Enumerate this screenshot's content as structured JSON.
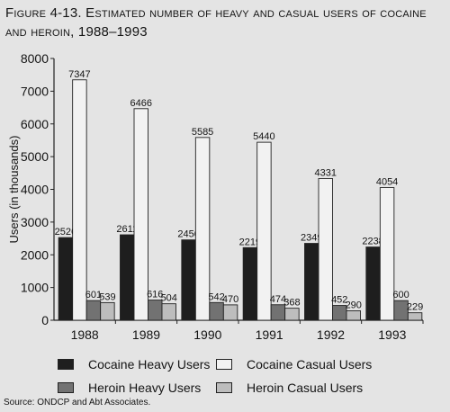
{
  "title": "Figure 4-13. Estimated number of heavy and casual users of cocaine and heroin, 1988–1993",
  "source": "Source: ONDCP and Abt Associates.",
  "colors": {
    "cocaine_heavy": "#1e1e1e",
    "cocaine_casual": "#f2f2f2",
    "heroin_heavy": "#727272",
    "heroin_casual": "#bdbdbd"
  },
  "chart_data": {
    "type": "bar",
    "title": "Figure 4-13. Estimated number of heavy and casual users of cocaine and heroin, 1988–1993",
    "xlabel": "",
    "ylabel": "Users (in thousands)",
    "ylim": [
      0,
      8000
    ],
    "yticks": [
      0,
      1000,
      2000,
      3000,
      4000,
      5000,
      6000,
      7000,
      8000
    ],
    "grid": false,
    "legend_position": "bottom",
    "categories": [
      "1988",
      "1989",
      "1990",
      "1991",
      "1992",
      "1993"
    ],
    "series": [
      {
        "name": "Cocaine Heavy Users",
        "values": [
          2526,
          2611,
          2456,
          2219,
          2349,
          2238
        ]
      },
      {
        "name": "Cocaine Casual Users",
        "values": [
          7347,
          6466,
          5585,
          5440,
          4331,
          4054
        ]
      },
      {
        "name": "Heroin Heavy Users",
        "values": [
          601,
          616,
          542,
          474,
          452,
          600
        ]
      },
      {
        "name": "Heroin Casual Users",
        "values": [
          539,
          504,
          470,
          368,
          290,
          229
        ]
      }
    ]
  }
}
